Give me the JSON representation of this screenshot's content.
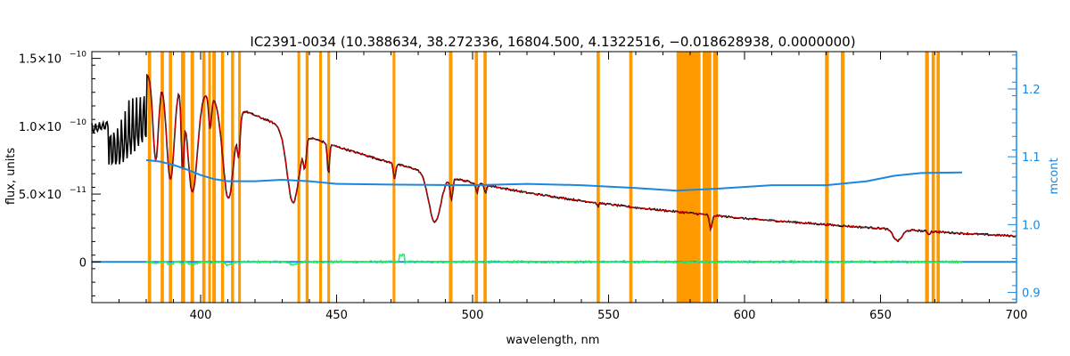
{
  "chart_data": {
    "type": "line",
    "title": "IC2391-0034    (10.388634, 38.272336, 16804.500, 4.1322516, −0.018628938, 0.0000000)",
    "xlabel": "wavelength, nm",
    "ylabel": "flux, units",
    "y2label": "mcont",
    "xlim": [
      360,
      700
    ],
    "ylim": [
      -3e-11,
      1.55e-10
    ],
    "y2lim": [
      0.885,
      1.255
    ],
    "x_ticks": [
      {
        "v": 400,
        "label": "400"
      },
      {
        "v": 450,
        "label": "450"
      },
      {
        "v": 500,
        "label": "500"
      },
      {
        "v": 550,
        "label": "550"
      },
      {
        "v": 600,
        "label": "600"
      },
      {
        "v": 650,
        "label": "650"
      },
      {
        "v": 700,
        "label": "700"
      }
    ],
    "y_ticks": [
      {
        "v": 0,
        "label": "0"
      },
      {
        "v": 5e-11,
        "label": "5.0×10",
        "exp": "−11"
      },
      {
        "v": 1e-10,
        "label": "1.0×10",
        "exp": "−10"
      },
      {
        "v": 1.5e-10,
        "label": "1.5×10",
        "exp": "−10"
      }
    ],
    "y2_ticks": [
      {
        "v": 0.9,
        "label": "0.9"
      },
      {
        "v": 1.0,
        "label": "1.0"
      },
      {
        "v": 1.1,
        "label": "1.1"
      },
      {
        "v": 1.2,
        "label": "1.2"
      }
    ],
    "colors": {
      "observed": "#000000",
      "model": "#e00000",
      "residual": "#22ee66",
      "continuum": "#1a88e0",
      "mask": "#ff9900",
      "right_axis": "#1a88e0",
      "zero_line": "#1a88e0"
    },
    "masked_regions_nm": [
      [
        380.6,
        381.8
      ],
      [
        385.3,
        386.5
      ],
      [
        388.3,
        389.5
      ],
      [
        392.8,
        394.3
      ],
      [
        396.3,
        397.6
      ],
      [
        400.6,
        401.8
      ],
      [
        402.8,
        403.8
      ],
      [
        404.3,
        405.6
      ],
      [
        407.5,
        408.6
      ],
      [
        411.2,
        412.3
      ],
      [
        413.8,
        414.8
      ],
      [
        435.6,
        436.6
      ],
      [
        438.6,
        439.7
      ],
      [
        443.6,
        444.6
      ],
      [
        446.6,
        447.6
      ],
      [
        470.6,
        471.6
      ],
      [
        491.3,
        492.6
      ],
      [
        500.8,
        502.0
      ],
      [
        504.0,
        505.2
      ],
      [
        545.6,
        546.8
      ],
      [
        557.6,
        558.8
      ],
      [
        575.0,
        583.8
      ],
      [
        584.6,
        587.8
      ],
      [
        588.4,
        590.2
      ],
      [
        629.6,
        631.0
      ],
      [
        635.4,
        636.8
      ],
      [
        666.4,
        667.8
      ],
      [
        668.8,
        670.0
      ],
      [
        670.6,
        671.8
      ]
    ],
    "continuum_mcont": [
      {
        "x": 380,
        "y": 1.095
      },
      {
        "x": 385,
        "y": 1.093
      },
      {
        "x": 390,
        "y": 1.088
      },
      {
        "x": 395,
        "y": 1.081
      },
      {
        "x": 400,
        "y": 1.073
      },
      {
        "x": 405,
        "y": 1.067
      },
      {
        "x": 410,
        "y": 1.064
      },
      {
        "x": 420,
        "y": 1.064
      },
      {
        "x": 430,
        "y": 1.066
      },
      {
        "x": 440,
        "y": 1.064
      },
      {
        "x": 450,
        "y": 1.06
      },
      {
        "x": 470,
        "y": 1.059
      },
      {
        "x": 500,
        "y": 1.058
      },
      {
        "x": 520,
        "y": 1.06
      },
      {
        "x": 540,
        "y": 1.058
      },
      {
        "x": 560,
        "y": 1.054
      },
      {
        "x": 575,
        "y": 1.05
      },
      {
        "x": 590,
        "y": 1.053
      },
      {
        "x": 610,
        "y": 1.058
      },
      {
        "x": 630,
        "y": 1.058
      },
      {
        "x": 645,
        "y": 1.064
      },
      {
        "x": 655,
        "y": 1.072
      },
      {
        "x": 665,
        "y": 1.076
      },
      {
        "x": 680,
        "y": 1.077
      }
    ],
    "flux_continuum_knots": [
      {
        "x": 360,
        "y": 1.02e-10
      },
      {
        "x": 370,
        "y": 1.09e-10
      },
      {
        "x": 380,
        "y": 1.38e-10
      },
      {
        "x": 390,
        "y": 1.34e-10
      },
      {
        "x": 400,
        "y": 1.26e-10
      },
      {
        "x": 410,
        "y": 1.17e-10
      },
      {
        "x": 420,
        "y": 1.08e-10
      },
      {
        "x": 430,
        "y": 1e-10
      },
      {
        "x": 440,
        "y": 9.2e-11
      },
      {
        "x": 450,
        "y": 8.5e-11
      },
      {
        "x": 460,
        "y": 7.9e-11
      },
      {
        "x": 470,
        "y": 7.3e-11
      },
      {
        "x": 480,
        "y": 6.8e-11
      },
      {
        "x": 490,
        "y": 6.3e-11
      },
      {
        "x": 500,
        "y": 5.85e-11
      },
      {
        "x": 520,
        "y": 5.1e-11
      },
      {
        "x": 540,
        "y": 4.5e-11
      },
      {
        "x": 560,
        "y": 4e-11
      },
      {
        "x": 580,
        "y": 3.6e-11
      },
      {
        "x": 600,
        "y": 3.2e-11
      },
      {
        "x": 620,
        "y": 2.9e-11
      },
      {
        "x": 640,
        "y": 2.6e-11
      },
      {
        "x": 660,
        "y": 2.35e-11
      },
      {
        "x": 680,
        "y": 2.1e-11
      },
      {
        "x": 700,
        "y": 1.9e-11
      }
    ],
    "absorption_lines": [
      {
        "x": 383.5,
        "depth": 0.45,
        "width": 1.0
      },
      {
        "x": 388.9,
        "depth": 0.55,
        "width": 1.4
      },
      {
        "x": 393.4,
        "depth": 0.45,
        "width": 0.5
      },
      {
        "x": 397.0,
        "depth": 0.6,
        "width": 1.8
      },
      {
        "x": 403.5,
        "depth": 0.2,
        "width": 0.5
      },
      {
        "x": 410.2,
        "depth": 0.6,
        "width": 2.0
      },
      {
        "x": 414.0,
        "depth": 0.25,
        "width": 0.5
      },
      {
        "x": 434.0,
        "depth": 0.55,
        "width": 2.2
      },
      {
        "x": 438.3,
        "depth": 0.2,
        "width": 0.5
      },
      {
        "x": 447.0,
        "depth": 0.25,
        "width": 0.4
      },
      {
        "x": 471.3,
        "depth": 0.15,
        "width": 0.4
      },
      {
        "x": 486.1,
        "depth": 0.55,
        "width": 2.2
      },
      {
        "x": 492.2,
        "depth": 0.25,
        "width": 0.5
      },
      {
        "x": 501.6,
        "depth": 0.12,
        "width": 0.4
      },
      {
        "x": 504.8,
        "depth": 0.1,
        "width": 0.4
      },
      {
        "x": 546.1,
        "depth": 0.05,
        "width": 0.4
      },
      {
        "x": 587.6,
        "depth": 0.3,
        "width": 0.5
      },
      {
        "x": 656.3,
        "depth": 0.35,
        "width": 1.6
      },
      {
        "x": 667.8,
        "depth": 0.1,
        "width": 0.4
      }
    ]
  }
}
